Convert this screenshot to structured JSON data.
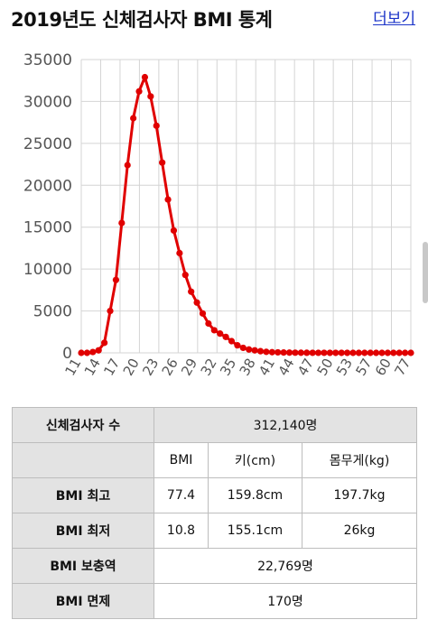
{
  "header": {
    "title": "2019년도 신체검사자 BMI 통계",
    "more_link": "더보기"
  },
  "chart_data": {
    "type": "line",
    "title": "",
    "xlabel": "",
    "ylabel": "",
    "ylim": [
      0,
      35000
    ],
    "yticks": [
      0,
      5000,
      10000,
      15000,
      20000,
      25000,
      30000,
      35000
    ],
    "x_tick_labels": [
      "11",
      "14",
      "17",
      "20",
      "23",
      "26",
      "29",
      "32",
      "35",
      "38",
      "41",
      "44",
      "47",
      "50",
      "53",
      "57",
      "60",
      "77"
    ],
    "grid": true,
    "line_color": "#e00000",
    "series": [
      {
        "values": [
          0,
          0,
          100,
          300,
          1200,
          5000,
          8700,
          15500,
          22400,
          28000,
          31200,
          32900,
          30600,
          27100,
          22700,
          18300,
          14600,
          11900,
          9300,
          7300,
          6000,
          4700,
          3500,
          2700,
          2300,
          1900,
          1400,
          900,
          600,
          400,
          300,
          200,
          120,
          80,
          60,
          40,
          30,
          20,
          15,
          10,
          8,
          6,
          5,
          4,
          3,
          2,
          2,
          1,
          1,
          1,
          1,
          0,
          0,
          0,
          0,
          0,
          0,
          0
        ]
      }
    ]
  },
  "table": {
    "examinees_label": "신체검사자 수",
    "examinees_value": "312,140명",
    "columns": [
      "BMI",
      "키(cm)",
      "몸무게(kg)"
    ],
    "rows": [
      {
        "label": "BMI 최고",
        "bmi": "77.4",
        "height": "159.8cm",
        "weight": "197.7kg"
      },
      {
        "label": "BMI 최저",
        "bmi": "10.8",
        "height": "155.1cm",
        "weight": "26kg"
      }
    ],
    "supplementary_label": "BMI 보충역",
    "supplementary_value": "22,769명",
    "exempt_label": "BMI 면제",
    "exempt_value": "170명"
  }
}
